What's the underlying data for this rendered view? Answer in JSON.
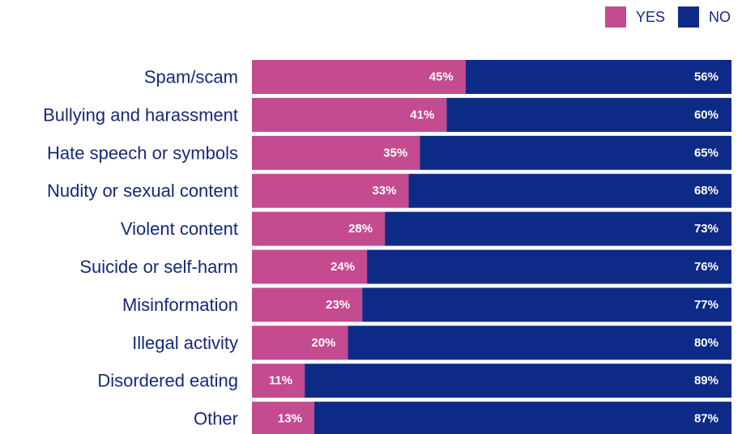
{
  "colors": {
    "yes": "#c44b8f",
    "no": "#0d2b86",
    "label_text": "#16287a",
    "value_text": "#ffffff"
  },
  "chart_data": {
    "type": "bar",
    "orientation": "horizontal",
    "stacked": true,
    "title": "",
    "xlabel": "",
    "ylabel": "",
    "legend_position": "top-right",
    "grid": false,
    "categories": [
      "Spam/scam",
      "Bullying and harassment",
      "Hate speech or symbols",
      "Nudity or sexual content",
      "Violent content",
      "Suicide or self-harm",
      "Misinformation",
      "Illegal activity",
      "Disordered eating",
      "Other"
    ],
    "series": [
      {
        "name": "YES",
        "values": [
          45,
          41,
          35,
          33,
          28,
          24,
          23,
          20,
          11,
          13
        ],
        "labels": [
          "45%",
          "41%",
          "35%",
          "33%",
          "28%",
          "24%",
          "23%",
          "20%",
          "11%",
          "13%"
        ]
      },
      {
        "name": "NO",
        "values": [
          56,
          60,
          65,
          68,
          73,
          76,
          77,
          80,
          89,
          87
        ],
        "labels": [
          "56%",
          "60%",
          "65%",
          "68%",
          "73%",
          "76%",
          "77%",
          "80%",
          "89%",
          "87%"
        ]
      }
    ]
  }
}
